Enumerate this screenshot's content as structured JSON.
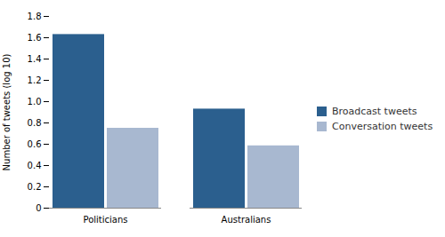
{
  "chart_data": {
    "type": "bar",
    "categories": [
      "Politicians",
      "Australians"
    ],
    "series": [
      {
        "name": "Broadcast tweets",
        "color": "#2B5F8E",
        "values": [
          1.63,
          0.93
        ]
      },
      {
        "name": "Conversation tweets",
        "color": "#A8B8D0",
        "values": [
          0.75,
          0.585
        ]
      }
    ],
    "ylabel": "Number of tweets (log 10)",
    "ylim": [
      0,
      1.8
    ],
    "yticks": [
      0,
      0.2,
      0.4,
      0.6,
      0.8,
      {
        "value": 1,
        "label": "1.0"
      },
      1.2,
      1.4,
      1.6,
      1.8
    ],
    "legend": "right",
    "grid": false
  }
}
